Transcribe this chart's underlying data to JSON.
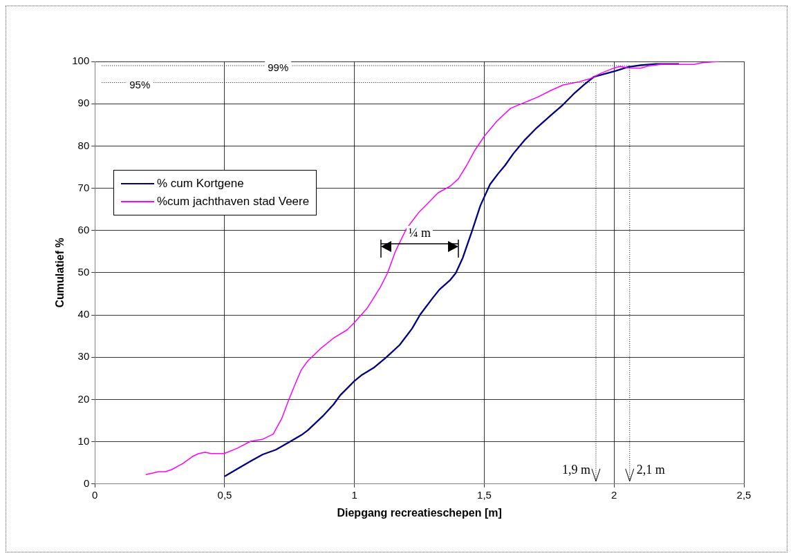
{
  "chart_data": {
    "type": "line",
    "xlabel": "Diepgang recreatieschepen [m]",
    "ylabel": "Cumulatief %",
    "xlim": [
      0,
      2.5
    ],
    "ylim": [
      0,
      100
    ],
    "xticks": [
      0,
      {
        "value": 0.5,
        "label": "0,5"
      },
      1,
      {
        "value": 1.5,
        "label": "1,5"
      },
      2,
      {
        "value": 2.5,
        "label": "2,5"
      }
    ],
    "yticks": [
      0,
      10,
      20,
      30,
      40,
      50,
      60,
      70,
      80,
      90,
      100
    ],
    "grid": true,
    "legend": "left",
    "marker": "none",
    "line_style": "solid",
    "series": [
      {
        "name": "% cum Kortgene",
        "color": "#000080",
        "x": [
          0.5,
          0.552,
          0.6,
          0.647,
          0.697,
          0.746,
          0.796,
          0.82,
          0.877,
          0.919,
          0.945,
          1.0,
          1.026,
          1.074,
          1.121,
          1.174,
          1.222,
          1.253,
          1.301,
          1.327,
          1.369,
          1.39,
          1.417,
          1.454,
          1.485,
          1.522,
          1.554,
          1.58,
          1.612,
          1.654,
          1.702,
          1.755,
          1.802,
          1.849,
          1.886,
          1.923,
          2.002,
          2.055,
          2.102,
          2.16,
          2.25
        ],
        "values": [
          1.8,
          3.7,
          5.4,
          7,
          8.1,
          9.8,
          11.6,
          12.7,
          16,
          18.8,
          21,
          24.4,
          25.7,
          27.5,
          29.9,
          32.9,
          36.8,
          40.1,
          44,
          46,
          48.3,
          49.9,
          53.5,
          60.1,
          65.9,
          70.9,
          73.5,
          75.4,
          78.2,
          81.3,
          84.3,
          87.2,
          89.7,
          92.6,
          94.6,
          96.4,
          97.7,
          98.7,
          99.1,
          99.4,
          99.4
        ]
      },
      {
        "name": "%cum jachthaven stad Veere",
        "color": "#ff00ff",
        "x": [
          0.196,
          0.246,
          0.271,
          0.296,
          0.338,
          0.376,
          0.4,
          0.425,
          0.448,
          0.498,
          0.547,
          0.6,
          0.647,
          0.687,
          0.72,
          0.746,
          0.772,
          0.795,
          0.82,
          0.872,
          0.919,
          0.972,
          1.0,
          1.05,
          1.1,
          1.127,
          1.158,
          1.2,
          1.248,
          1.322,
          1.369,
          1.4,
          1.432,
          1.464,
          1.5,
          1.549,
          1.601,
          1.644,
          1.707,
          1.755,
          1.802,
          1.865,
          1.907,
          1.949,
          2.002,
          2.023,
          2.055,
          2.102,
          2.129,
          2.181,
          2.308,
          2.34,
          2.405
        ],
        "values": [
          2.2,
          2.9,
          2.9,
          3.4,
          4.8,
          6.5,
          7.2,
          7.5,
          7.2,
          7.2,
          8.4,
          10.1,
          10.6,
          11.8,
          15.5,
          19.8,
          23.7,
          27,
          29.1,
          32.2,
          34.5,
          36.5,
          38.2,
          41.7,
          46.6,
          49.9,
          55.1,
          60.4,
          64.3,
          68.9,
          70.5,
          72.2,
          75.4,
          79,
          82.3,
          85.9,
          88.9,
          90,
          91.6,
          93.1,
          94.4,
          95.2,
          95.9,
          97.2,
          98.5,
          98.8,
          98.5,
          98.4,
          98.9,
          99.3,
          99.3,
          99.7,
          100
        ]
      }
    ],
    "ref_lines": [
      {
        "axis": "y",
        "value": 95,
        "label": "95%",
        "line_style": "dotted",
        "color": "#000000"
      },
      {
        "axis": "y",
        "value": 99,
        "label": "99%",
        "line_style": "dotted",
        "color": "#000000"
      },
      {
        "axis": "x",
        "value": 1.93,
        "label": "1,9 m",
        "line_style": "dotted",
        "color": "#000000"
      },
      {
        "axis": "x",
        "value": 2.06,
        "label": "2,1 m",
        "line_style": "dotted",
        "color": "#000000"
      }
    ],
    "annotations": [
      "¼ m"
    ]
  }
}
